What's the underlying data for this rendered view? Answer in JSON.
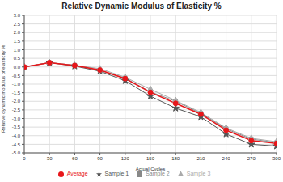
{
  "chart_data": {
    "type": "line",
    "title": "Relative Dynamic Modulus of Elasticity %",
    "x_label": "Actual Cycles",
    "y_label": "Relative dynamic modulus of elasticity %",
    "x": [
      0,
      30,
      60,
      90,
      120,
      150,
      180,
      210,
      240,
      270,
      300
    ],
    "xlim": [
      0,
      300
    ],
    "xticks": [
      0,
      30,
      60,
      90,
      120,
      150,
      180,
      210,
      240,
      270,
      300
    ],
    "ylim": [
      -5,
      3
    ],
    "yticks": [
      {
        "value": 3,
        "label": "3.0"
      },
      {
        "value": 2.5,
        "label": "2.5"
      },
      {
        "value": 2,
        "label": "2.0"
      },
      {
        "value": 1.5,
        "label": "1.5"
      },
      {
        "value": 1,
        "label": "1.0"
      },
      {
        "value": 0.5,
        "label": "0.5"
      },
      {
        "value": 0,
        "label": "0.0"
      },
      {
        "value": -0.5,
        "label": "-0.5"
      },
      {
        "value": -1,
        "label": "-1.0"
      },
      {
        "value": -1.5,
        "label": "-1.5"
      },
      {
        "value": -2,
        "label": "-2.0"
      },
      {
        "value": -2.5,
        "label": "-2.5"
      },
      {
        "value": -3,
        "label": "-3.0"
      },
      {
        "value": -3.5,
        "label": "-3.5"
      },
      {
        "value": -4,
        "label": "-4.0"
      },
      {
        "value": -4.5,
        "label": "-4.5"
      },
      {
        "value": -5,
        "label": "-5.0"
      }
    ],
    "grid": true,
    "legend": "bottom",
    "series": [
      {
        "name": "Sample 1",
        "color": "#555555",
        "marker": "star",
        "line_style": "solid",
        "values": [
          0,
          0.25,
          0.05,
          -0.25,
          -0.8,
          -1.7,
          -2.4,
          -2.9,
          -3.9,
          -4.5,
          -4.6
        ]
      },
      {
        "name": "Sample 2",
        "color": "#888888",
        "marker": "square",
        "line_style": "solid",
        "values": [
          0,
          0.25,
          0.1,
          -0.2,
          -0.65,
          -1.45,
          -2.0,
          -2.7,
          -3.6,
          -4.2,
          -4.4
        ]
      },
      {
        "name": "Sample 3",
        "color": "#aaaaaa",
        "marker": "triangle",
        "line_style": "solid",
        "values": [
          0,
          0.25,
          0.1,
          -0.1,
          -0.6,
          -1.3,
          -1.95,
          -2.65,
          -3.55,
          -4.15,
          -4.35
        ]
      },
      {
        "name": "Average",
        "color": "#e8161a",
        "marker": "circle",
        "line_style": "solid",
        "values": [
          0,
          0.25,
          0.08,
          -0.18,
          -0.68,
          -1.48,
          -2.12,
          -2.75,
          -3.68,
          -4.28,
          -4.45
        ]
      }
    ]
  }
}
